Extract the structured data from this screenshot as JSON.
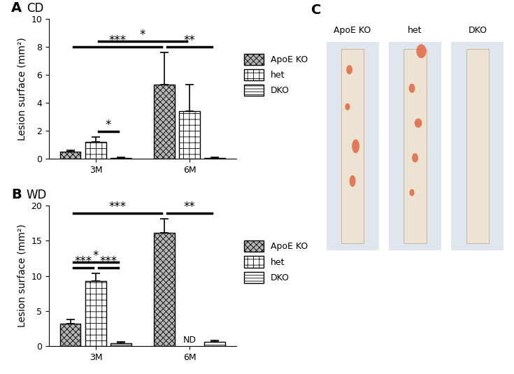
{
  "chart_data": [
    {
      "type": "bar",
      "panel": "A",
      "title": "CD",
      "categories": [
        "3M",
        "6M"
      ],
      "y_label": "Lesion surface (mm²)",
      "ylim": [
        0,
        10
      ],
      "yticks": [
        0,
        2,
        4,
        6,
        8,
        10
      ],
      "legend": "right",
      "series": [
        {
          "name": "ApoE KO",
          "color": "#b5b5b5",
          "values": [
            0.5,
            5.3
          ],
          "errors": [
            0.1,
            2.3
          ]
        },
        {
          "name": "het",
          "color": "#ffffff",
          "values": [
            1.2,
            3.4
          ],
          "errors": [
            0.35,
            1.9
          ]
        },
        {
          "name": "DKO",
          "color": "#ffffff",
          "values": [
            0.08,
            0.08
          ],
          "errors": [
            0.05,
            0.04
          ]
        }
      ],
      "comparisons": [
        {
          "text": "*",
          "from": [
            "3M",
            "het"
          ],
          "to": [
            "3M",
            "DKO"
          ]
        },
        {
          "text": "**",
          "from": [
            "6M",
            "ApoE KO"
          ],
          "to": [
            "6M",
            "DKO"
          ]
        },
        {
          "text": "***",
          "from": [
            "3M",
            "ApoE KO"
          ],
          "to": [
            "6M",
            "ApoE KO"
          ]
        },
        {
          "text": "*",
          "from": [
            "3M",
            "het"
          ],
          "to": [
            "6M",
            "het"
          ]
        }
      ]
    },
    {
      "type": "bar",
      "panel": "B",
      "title": "WD",
      "categories": [
        "3M",
        "6M"
      ],
      "y_label": "Lesion surface (mm²)",
      "ylim": [
        0,
        20
      ],
      "yticks": [
        0,
        5,
        10,
        15,
        20
      ],
      "legend": "right",
      "series": [
        {
          "name": "ApoE KO",
          "color": "#b5b5b5",
          "values": [
            3.2,
            16.1
          ],
          "errors": [
            0.6,
            2.0
          ]
        },
        {
          "name": "het",
          "color": "#ffffff",
          "values": [
            9.3,
            null
          ],
          "errors": [
            1.1,
            null
          ]
        },
        {
          "name": "DKO",
          "color": "#ffffff",
          "values": [
            0.4,
            0.6
          ],
          "errors": [
            0.2,
            0.15
          ]
        }
      ],
      "comparisons": [
        {
          "text": "***",
          "from": [
            "3M",
            "ApoE KO"
          ],
          "to": [
            "3M",
            "het"
          ]
        },
        {
          "text": "***",
          "from": [
            "3M",
            "het"
          ],
          "to": [
            "3M",
            "DKO"
          ]
        },
        {
          "text": "*",
          "from": [
            "3M",
            "ApoE KO"
          ],
          "to": [
            "3M",
            "DKO"
          ]
        },
        {
          "text": "**",
          "from": [
            "6M",
            "ApoE KO"
          ],
          "to": [
            "6M",
            "DKO"
          ]
        },
        {
          "text": "***",
          "from": [
            "3M",
            "ApoE KO"
          ],
          "to": [
            "6M",
            "ApoE KO"
          ]
        }
      ],
      "annotations": [
        {
          "text": "ND",
          "at": [
            "6M",
            "het"
          ]
        }
      ]
    }
  ],
  "panel_c": {
    "panel": "C",
    "captions": [
      "ApoE KO",
      "het",
      "DKO"
    ]
  }
}
